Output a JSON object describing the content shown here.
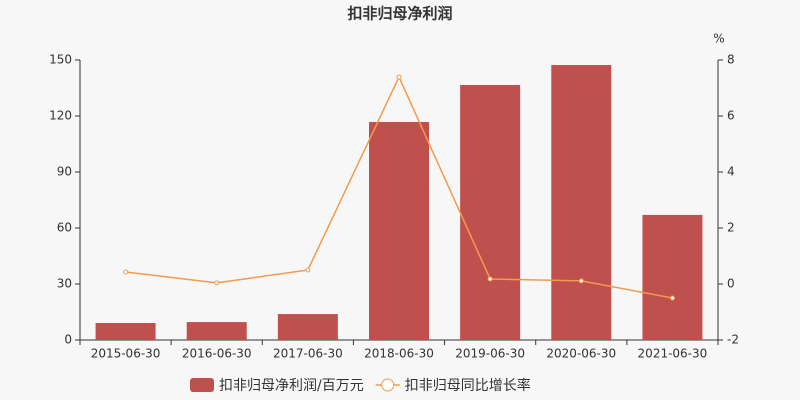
{
  "chart_data": {
    "type": "bar-line",
    "title": "扣非归母净利润",
    "y2_label": "%",
    "categories": [
      "2015-06-30",
      "2016-06-30",
      "2017-06-30",
      "2018-06-30",
      "2019-06-30",
      "2020-06-30",
      "2021-06-30"
    ],
    "series": [
      {
        "name": "扣非归母净利润/百万元",
        "type": "bar",
        "color": "#c0504d",
        "values": [
          9.1,
          9.6,
          13.9,
          116.8,
          136.6,
          147.3,
          67
        ]
      },
      {
        "name": "扣非归母同比增长率",
        "type": "line",
        "axis": "y2",
        "color": "#f39a4c",
        "values": [
          0.43,
          0.04,
          0.5,
          7.39,
          0.18,
          0.11,
          -0.5
        ]
      }
    ],
    "ylim": [
      0,
      150
    ],
    "yticks": [
      0,
      30,
      60,
      90,
      120,
      150
    ],
    "y2lim": [
      -2,
      8
    ],
    "y2ticks": [
      -2,
      0,
      2,
      4,
      6,
      8
    ]
  }
}
